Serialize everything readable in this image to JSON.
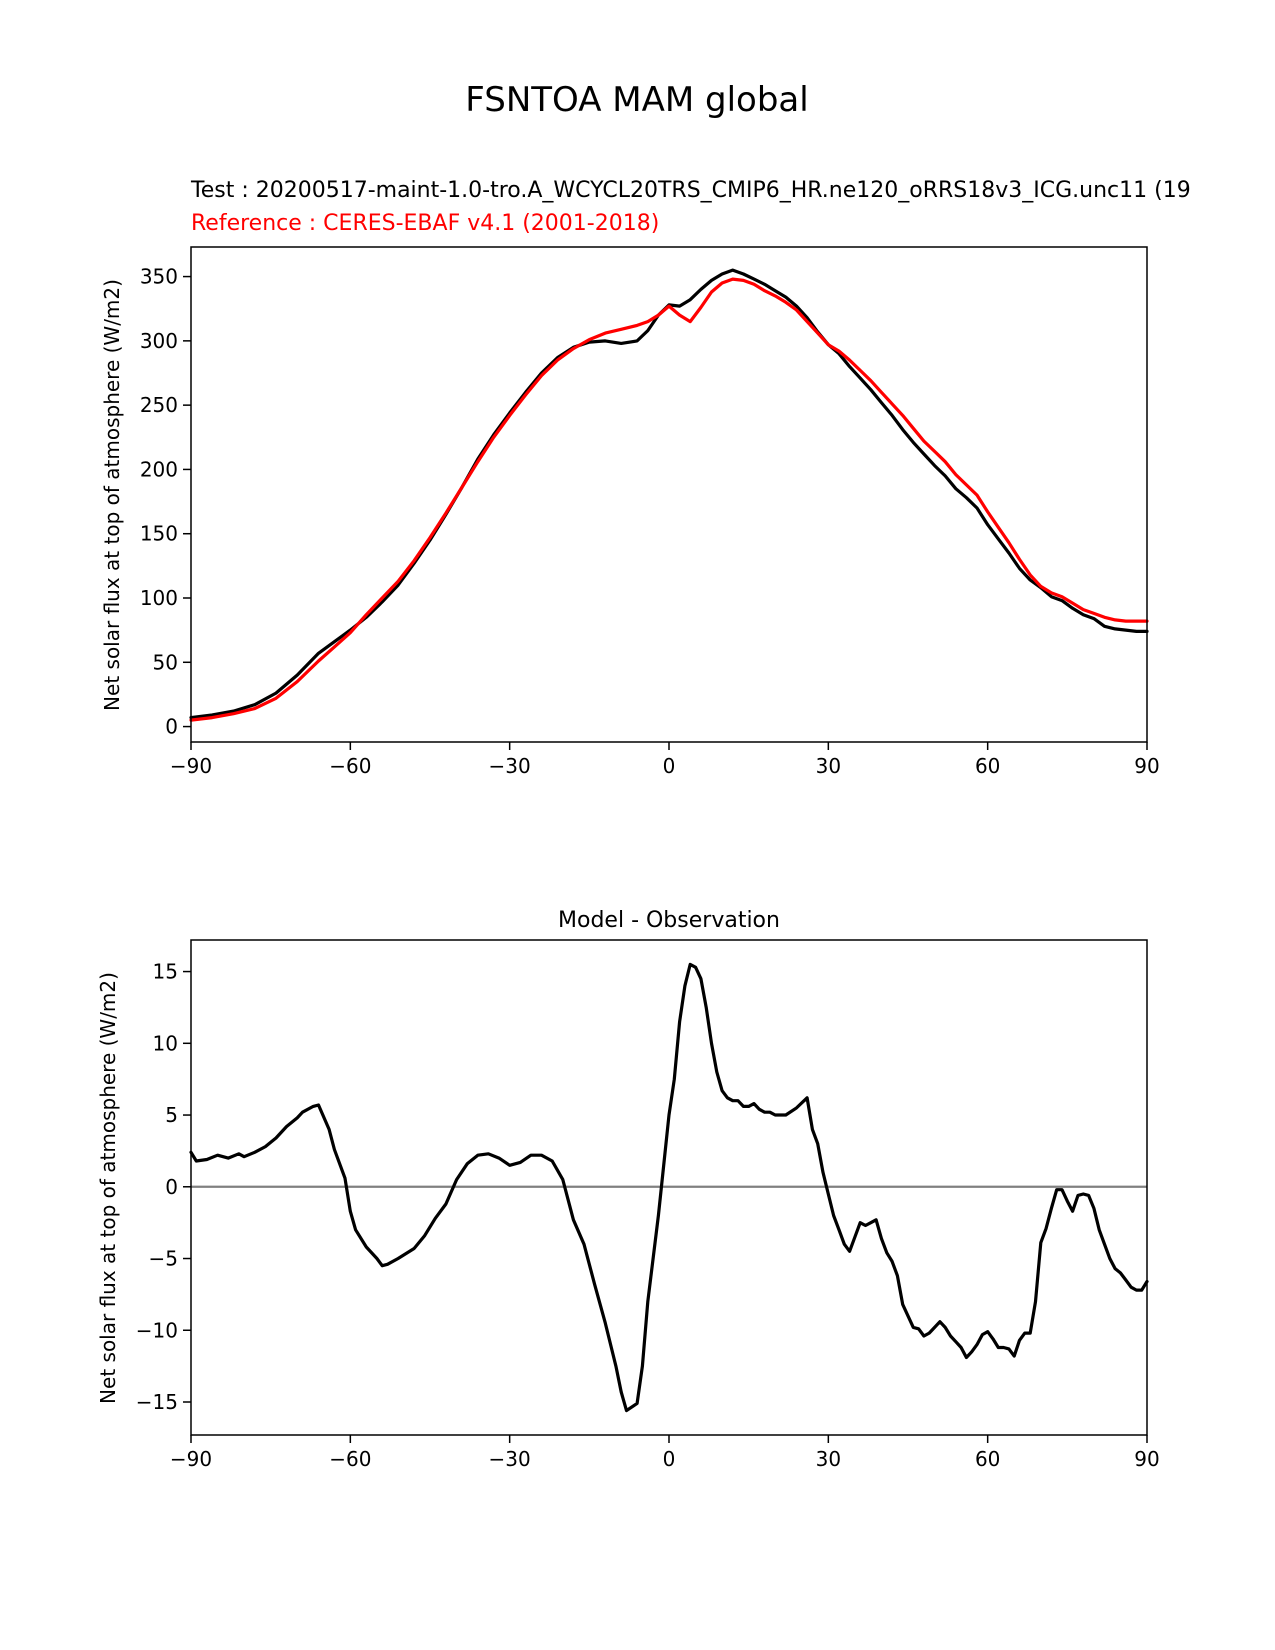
{
  "figure": {
    "suptitle": "FSNTOA MAM global"
  },
  "chart_data": [
    {
      "type": "line",
      "title_test": "Test : 20200517-maint-1.0-tro.A_WCYCL20TRS_CMIP6_HR.ne120_oRRS18v3_ICG.unc11 (19",
      "title_reference": "Reference : CERES-EBAF v4.1 (2001-2018)",
      "xlabel": "",
      "ylabel": "Net solar flux at top of atmosphere (W/m2)",
      "xlim": [
        -90,
        90
      ],
      "ylim": [
        -12,
        373
      ],
      "xticks": [
        -90,
        -60,
        -30,
        0,
        30,
        60,
        90
      ],
      "xtick_labels": [
        "−90",
        "−60",
        "−30",
        "0",
        "30",
        "60",
        "90"
      ],
      "yticks": [
        0,
        50,
        100,
        150,
        200,
        250,
        300,
        350
      ],
      "ytick_labels": [
        "0",
        "50",
        "100",
        "150",
        "200",
        "250",
        "300",
        "350"
      ],
      "series": [
        {
          "color": "#000000",
          "x": [
            -90,
            -86,
            -82,
            -78,
            -74,
            -70,
            -66,
            -63,
            -60,
            -57,
            -54,
            -51,
            -48,
            -45,
            -42,
            -39,
            -36,
            -33,
            -30,
            -27,
            -24,
            -21,
            -18,
            -15,
            -12,
            -9,
            -6,
            -4,
            -2,
            0,
            2,
            4,
            6,
            8,
            10,
            12,
            14,
            16,
            18,
            20,
            22,
            24,
            26,
            28,
            30,
            32,
            34,
            36,
            38,
            40,
            42,
            44,
            46,
            48,
            50,
            52,
            54,
            56,
            58,
            60,
            62,
            64,
            66,
            68,
            70,
            72,
            74,
            76,
            78,
            80,
            82,
            84,
            86,
            88,
            90
          ],
          "y": [
            7,
            9,
            12,
            17,
            26,
            40,
            57,
            66,
            75,
            85,
            97,
            110,
            127,
            145,
            165,
            186,
            208,
            227,
            244,
            260,
            275,
            287,
            295,
            299,
            300,
            298,
            300,
            308,
            320,
            328,
            327,
            332,
            340,
            347,
            352,
            355,
            352,
            348,
            344,
            339,
            334,
            327,
            318,
            307,
            297,
            290,
            280,
            271,
            262,
            252,
            242,
            231,
            221,
            212,
            203,
            195,
            185,
            178,
            170,
            157,
            146,
            135,
            123,
            114,
            108,
            101,
            98,
            92,
            87,
            84,
            78,
            76,
            75,
            74,
            74
          ]
        },
        {
          "color": "#ff0000",
          "x": [
            -90,
            -86,
            -82,
            -78,
            -74,
            -70,
            -66,
            -63,
            -60,
            -57,
            -54,
            -51,
            -48,
            -45,
            -42,
            -39,
            -36,
            -33,
            -30,
            -27,
            -24,
            -21,
            -18,
            -15,
            -12,
            -9,
            -6,
            -4,
            -2,
            0,
            2,
            4,
            6,
            8,
            10,
            12,
            14,
            16,
            18,
            20,
            22,
            24,
            26,
            28,
            30,
            32,
            34,
            36,
            38,
            40,
            42,
            44,
            46,
            48,
            50,
            52,
            54,
            56,
            58,
            60,
            62,
            64,
            66,
            68,
            70,
            72,
            74,
            76,
            78,
            80,
            82,
            84,
            86,
            88,
            90
          ],
          "y": [
            5,
            7,
            10,
            14,
            22,
            35,
            51,
            62,
            73,
            87,
            100,
            113,
            129,
            147,
            166,
            186,
            206,
            225,
            242,
            258,
            273,
            285,
            294,
            301,
            306,
            309,
            312,
            315,
            320,
            327,
            320,
            315,
            326,
            338,
            345,
            348,
            347,
            344,
            339,
            335,
            330,
            324,
            315,
            306,
            297,
            292,
            285,
            277,
            269,
            260,
            251,
            242,
            232,
            222,
            214,
            206,
            196,
            188,
            180,
            167,
            155,
            143,
            130,
            118,
            109,
            104,
            101,
            96,
            91,
            88,
            85,
            83,
            82,
            82,
            82
          ]
        }
      ]
    },
    {
      "type": "line",
      "title": "Model - Observation",
      "xlabel": "",
      "ylabel": "Net solar flux at top of atmosphere (W/m2)",
      "xlim": [
        -90,
        90
      ],
      "ylim": [
        -17.3,
        17.2
      ],
      "xticks": [
        -90,
        -60,
        -30,
        0,
        30,
        60,
        90
      ],
      "xtick_labels": [
        "−90",
        "−60",
        "−30",
        "0",
        "30",
        "60",
        "90"
      ],
      "yticks": [
        -15,
        -10,
        -5,
        0,
        5,
        10,
        15
      ],
      "ytick_labels": [
        "−15",
        "−10",
        "−5",
        "0",
        "5",
        "10",
        "15"
      ],
      "zero_line": true,
      "series": [
        {
          "color": "#000000",
          "x": [
            -90,
            -89,
            -87,
            -85,
            -83,
            -81,
            -80,
            -78,
            -76,
            -74,
            -72,
            -70,
            -69,
            -67,
            -66,
            -64,
            -63,
            -61,
            -60,
            -59,
            -57,
            -55,
            -54,
            -53,
            -51,
            -48,
            -46,
            -44,
            -42,
            -40,
            -38,
            -36,
            -34,
            -32,
            -30,
            -28,
            -26,
            -24,
            -22,
            -20,
            -18,
            -16,
            -14,
            -12,
            -10,
            -9,
            -8,
            -6,
            -5,
            -4,
            -2,
            -1,
            0,
            1,
            2,
            3,
            4,
            5,
            6,
            7,
            8,
            9,
            10,
            11,
            12,
            13,
            14,
            15,
            16,
            17,
            18,
            19,
            20,
            21,
            22,
            24,
            26,
            27,
            28,
            29,
            30,
            31,
            32,
            33,
            34,
            35,
            36,
            37,
            38,
            39,
            40,
            41,
            42,
            43,
            44,
            45,
            46,
            47,
            48,
            49,
            50,
            51,
            52,
            53,
            54,
            55,
            56,
            57,
            58,
            59,
            60,
            61,
            62,
            63,
            64,
            65,
            66,
            67,
            68,
            69,
            70,
            71,
            72,
            73,
            74,
            75,
            76,
            77,
            78,
            79,
            80,
            81,
            82,
            83,
            84,
            85,
            86,
            87,
            88,
            89,
            90
          ],
          "y": [
            2.4,
            1.8,
            1.9,
            2.2,
            2.0,
            2.3,
            2.1,
            2.4,
            2.8,
            3.4,
            4.2,
            4.8,
            5.2,
            5.6,
            5.7,
            4.0,
            2.6,
            0.6,
            -1.7,
            -3.0,
            -4.2,
            -5.0,
            -5.5,
            -5.4,
            -5.0,
            -4.3,
            -3.4,
            -2.2,
            -1.2,
            0.5,
            1.6,
            2.2,
            2.3,
            2.0,
            1.5,
            1.7,
            2.2,
            2.2,
            1.8,
            0.5,
            -2.3,
            -4.0,
            -6.8,
            -9.5,
            -12.5,
            -14.3,
            -15.6,
            -15.1,
            -12.5,
            -8.0,
            -2.0,
            1.5,
            5.0,
            7.5,
            11.5,
            14.0,
            15.5,
            15.3,
            14.5,
            12.5,
            10.0,
            8.0,
            6.7,
            6.2,
            6.0,
            6.0,
            5.6,
            5.6,
            5.8,
            5.4,
            5.2,
            5.2,
            5.0,
            5.0,
            5.0,
            5.5,
            6.2,
            4.0,
            3.0,
            1.0,
            -0.5,
            -2.0,
            -3.0,
            -4.0,
            -4.5,
            -3.5,
            -2.5,
            -2.7,
            -2.5,
            -2.3,
            -3.6,
            -4.6,
            -5.2,
            -6.2,
            -8.2,
            -9.0,
            -9.8,
            -9.9,
            -10.4,
            -10.2,
            -9.8,
            -9.4,
            -9.8,
            -10.4,
            -10.8,
            -11.2,
            -11.9,
            -11.5,
            -11.0,
            -10.3,
            -10.1,
            -10.6,
            -11.2,
            -11.2,
            -11.3,
            -11.8,
            -10.7,
            -10.2,
            -10.2,
            -8.0,
            -3.9,
            -2.9,
            -1.5,
            -0.2,
            -0.2,
            -1.0,
            -1.7,
            -0.6,
            -0.5,
            -0.6,
            -1.5,
            -3.0,
            -4.0,
            -5.0,
            -5.7,
            -6.0,
            -6.5,
            -7.0,
            -7.2,
            -7.2,
            -6.6
          ]
        }
      ]
    }
  ]
}
